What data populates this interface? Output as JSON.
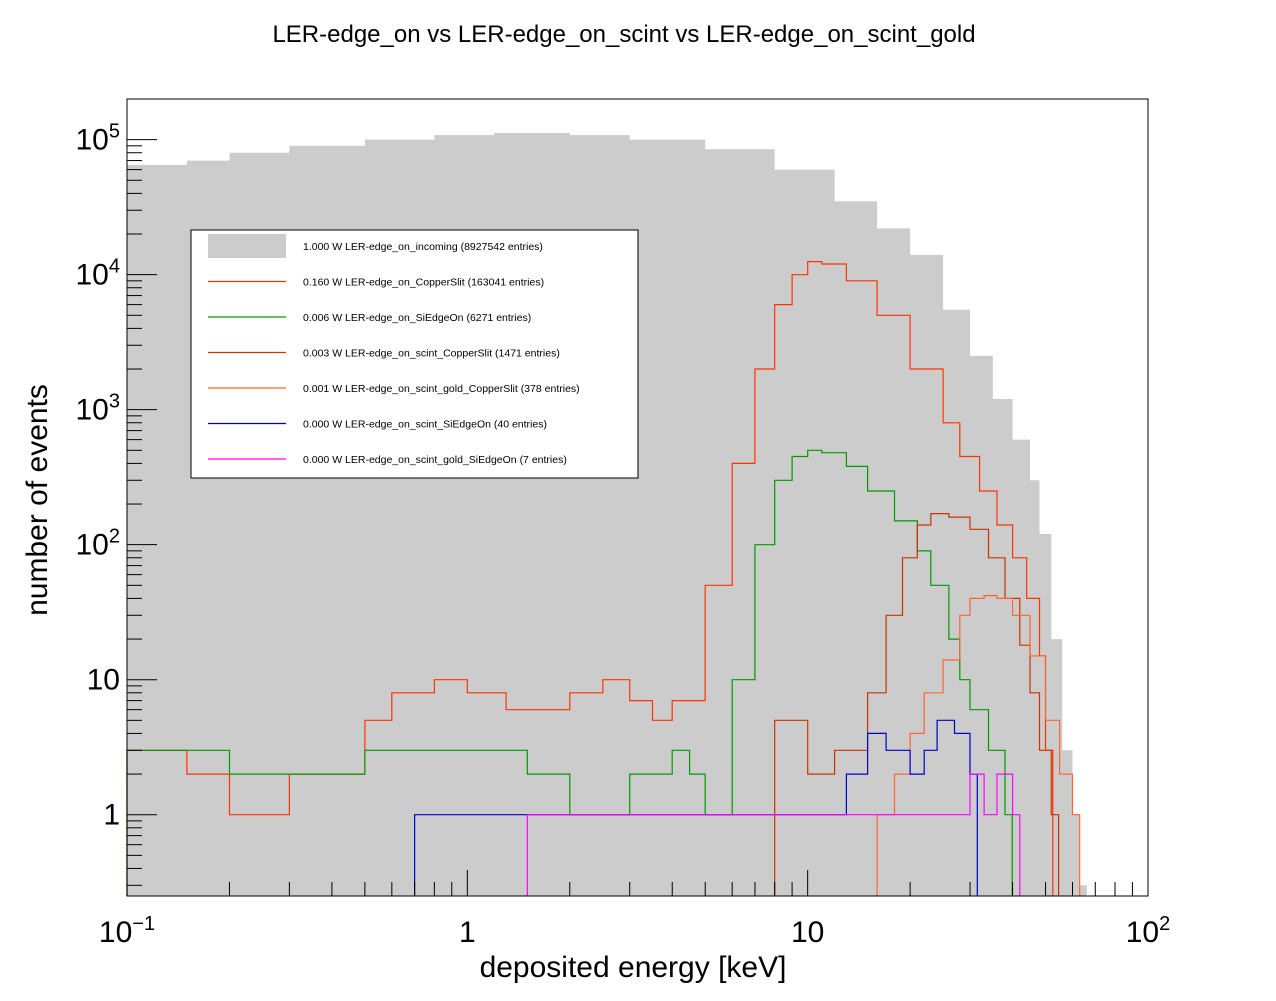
{
  "chart_data": {
    "type": "histogram",
    "title": "LER-edge_on vs LER-edge_on_scint vs LER-edge_on_scint_gold",
    "xlabel": "deposited energy [keV]",
    "ylabel": "number of events",
    "x_scale": "log",
    "y_scale": "log",
    "xlim": [
      0.1,
      120
    ],
    "ylim": [
      0.25,
      200000
    ],
    "x_tick_labels": [
      {
        "value": 0.1,
        "base": "10",
        "exp": "−1"
      },
      {
        "value": 1,
        "base": "1",
        "exp": ""
      },
      {
        "value": 10,
        "base": "10",
        "exp": ""
      },
      {
        "value": 100,
        "base": "10",
        "exp": "2"
      }
    ],
    "y_tick_labels": [
      {
        "value": 1,
        "base": "1",
        "exp": ""
      },
      {
        "value": 10,
        "base": "10",
        "exp": ""
      },
      {
        "value": 100,
        "base": "10",
        "exp": "2"
      },
      {
        "value": 1000,
        "base": "10",
        "exp": "3"
      },
      {
        "value": 10000,
        "base": "10",
        "exp": "4"
      },
      {
        "value": 100000,
        "base": "10",
        "exp": "5"
      }
    ],
    "legend_position": "upper-left",
    "series": [
      {
        "name": "1.000 W LER-edge_on_incoming (8927542 entries)",
        "color": "#cccccc",
        "style": "filled",
        "points": [
          [
            0.1,
            65000
          ],
          [
            0.15,
            70000
          ],
          [
            0.2,
            80000
          ],
          [
            0.3,
            90000
          ],
          [
            0.5,
            100000
          ],
          [
            0.8,
            108000
          ],
          [
            1.2,
            112000
          ],
          [
            2,
            108000
          ],
          [
            3,
            100000
          ],
          [
            5,
            85000
          ],
          [
            8,
            60000
          ],
          [
            12,
            35000
          ],
          [
            16,
            22000
          ],
          [
            20,
            14000
          ],
          [
            25,
            5500
          ],
          [
            30,
            2500
          ],
          [
            35,
            1200
          ],
          [
            40,
            600
          ],
          [
            45,
            300
          ],
          [
            48,
            120
          ],
          [
            52,
            20
          ],
          [
            56,
            3
          ],
          [
            60,
            1
          ],
          [
            63,
            0.3
          ]
        ]
      },
      {
        "name": "0.160 W LER-edge_on_CopperSlit (163041 entries)",
        "color": "#ff3300",
        "style": "line",
        "points": [
          [
            0.1,
            3
          ],
          [
            0.15,
            2
          ],
          [
            0.2,
            1
          ],
          [
            0.3,
            2
          ],
          [
            0.5,
            5
          ],
          [
            0.6,
            8
          ],
          [
            0.8,
            10
          ],
          [
            1,
            8
          ],
          [
            1.3,
            6
          ],
          [
            2,
            8
          ],
          [
            2.5,
            10
          ],
          [
            3,
            7
          ],
          [
            3.5,
            5
          ],
          [
            4,
            7
          ],
          [
            5,
            50
          ],
          [
            6,
            400
          ],
          [
            7,
            2000
          ],
          [
            8,
            6000
          ],
          [
            9,
            10000
          ],
          [
            10,
            12500
          ],
          [
            11,
            12000
          ],
          [
            13,
            9000
          ],
          [
            16,
            5000
          ],
          [
            20,
            2000
          ],
          [
            25,
            800
          ],
          [
            28,
            450
          ],
          [
            32,
            250
          ],
          [
            36,
            140
          ],
          [
            40,
            80
          ],
          [
            44,
            40
          ],
          [
            48,
            15
          ],
          [
            50,
            3
          ]
        ]
      },
      {
        "name": "0.006 W LER-edge_on_SiEdgeOn (6271 entries)",
        "color": "#009900",
        "style": "line",
        "points": [
          [
            0.1,
            3
          ],
          [
            0.2,
            2
          ],
          [
            0.3,
            2
          ],
          [
            0.5,
            3
          ],
          [
            1,
            3
          ],
          [
            1.5,
            2
          ],
          [
            2,
            1
          ],
          [
            3,
            2
          ],
          [
            4,
            3
          ],
          [
            4.5,
            2
          ],
          [
            5,
            1
          ],
          [
            6,
            10
          ],
          [
            7,
            100
          ],
          [
            8,
            300
          ],
          [
            9,
            450
          ],
          [
            10,
            500
          ],
          [
            11,
            480
          ],
          [
            13,
            380
          ],
          [
            15,
            250
          ],
          [
            18,
            150
          ],
          [
            21,
            90
          ],
          [
            23,
            50
          ],
          [
            26,
            20
          ],
          [
            28,
            10
          ],
          [
            30,
            6
          ],
          [
            34,
            3
          ],
          [
            38,
            1
          ]
        ]
      },
      {
        "name": "0.003 W LER-edge_on_scint_CopperSlit (1471 entries)",
        "color": "#cc3300",
        "style": "line",
        "points": [
          [
            8,
            5
          ],
          [
            10,
            2
          ],
          [
            12,
            3
          ],
          [
            15,
            8
          ],
          [
            17,
            30
          ],
          [
            19,
            80
          ],
          [
            21,
            140
          ],
          [
            23,
            170
          ],
          [
            26,
            160
          ],
          [
            30,
            130
          ],
          [
            34,
            80
          ],
          [
            38,
            40
          ],
          [
            42,
            18
          ],
          [
            45,
            8
          ],
          [
            48,
            3
          ],
          [
            52,
            1
          ]
        ]
      },
      {
        "name": "0.001 W LER-edge_on_scint_gold_CopperSlit (378 entries)",
        "color": "#ff6633",
        "style": "line",
        "points": [
          [
            16,
            1
          ],
          [
            18,
            2
          ],
          [
            20,
            4
          ],
          [
            22,
            8
          ],
          [
            25,
            14
          ],
          [
            28,
            30
          ],
          [
            30,
            40
          ],
          [
            33,
            42
          ],
          [
            36,
            40
          ],
          [
            40,
            30
          ],
          [
            45,
            15
          ],
          [
            50,
            5
          ],
          [
            55,
            2
          ],
          [
            60,
            1
          ]
        ]
      },
      {
        "name": "0.000 W LER-edge_on_scint_SiEdgeOn (40 entries)",
        "color": "#0000cc",
        "style": "line",
        "points": [
          [
            0.7,
            1
          ],
          [
            1.3,
            1
          ],
          [
            10,
            1
          ],
          [
            13,
            2
          ],
          [
            15,
            4
          ],
          [
            17,
            3
          ],
          [
            20,
            2
          ],
          [
            22,
            3
          ],
          [
            24,
            5
          ],
          [
            27,
            4
          ],
          [
            30,
            2
          ]
        ]
      },
      {
        "name": "0.000 W LER-edge_on_scint_gold_SiEdgeOn (7 entries)",
        "color": "#ff00ff",
        "style": "line",
        "points": [
          [
            1.5,
            1
          ],
          [
            28,
            1
          ],
          [
            30,
            2
          ],
          [
            33,
            1
          ],
          [
            36,
            2
          ],
          [
            40,
            1
          ]
        ]
      }
    ]
  }
}
